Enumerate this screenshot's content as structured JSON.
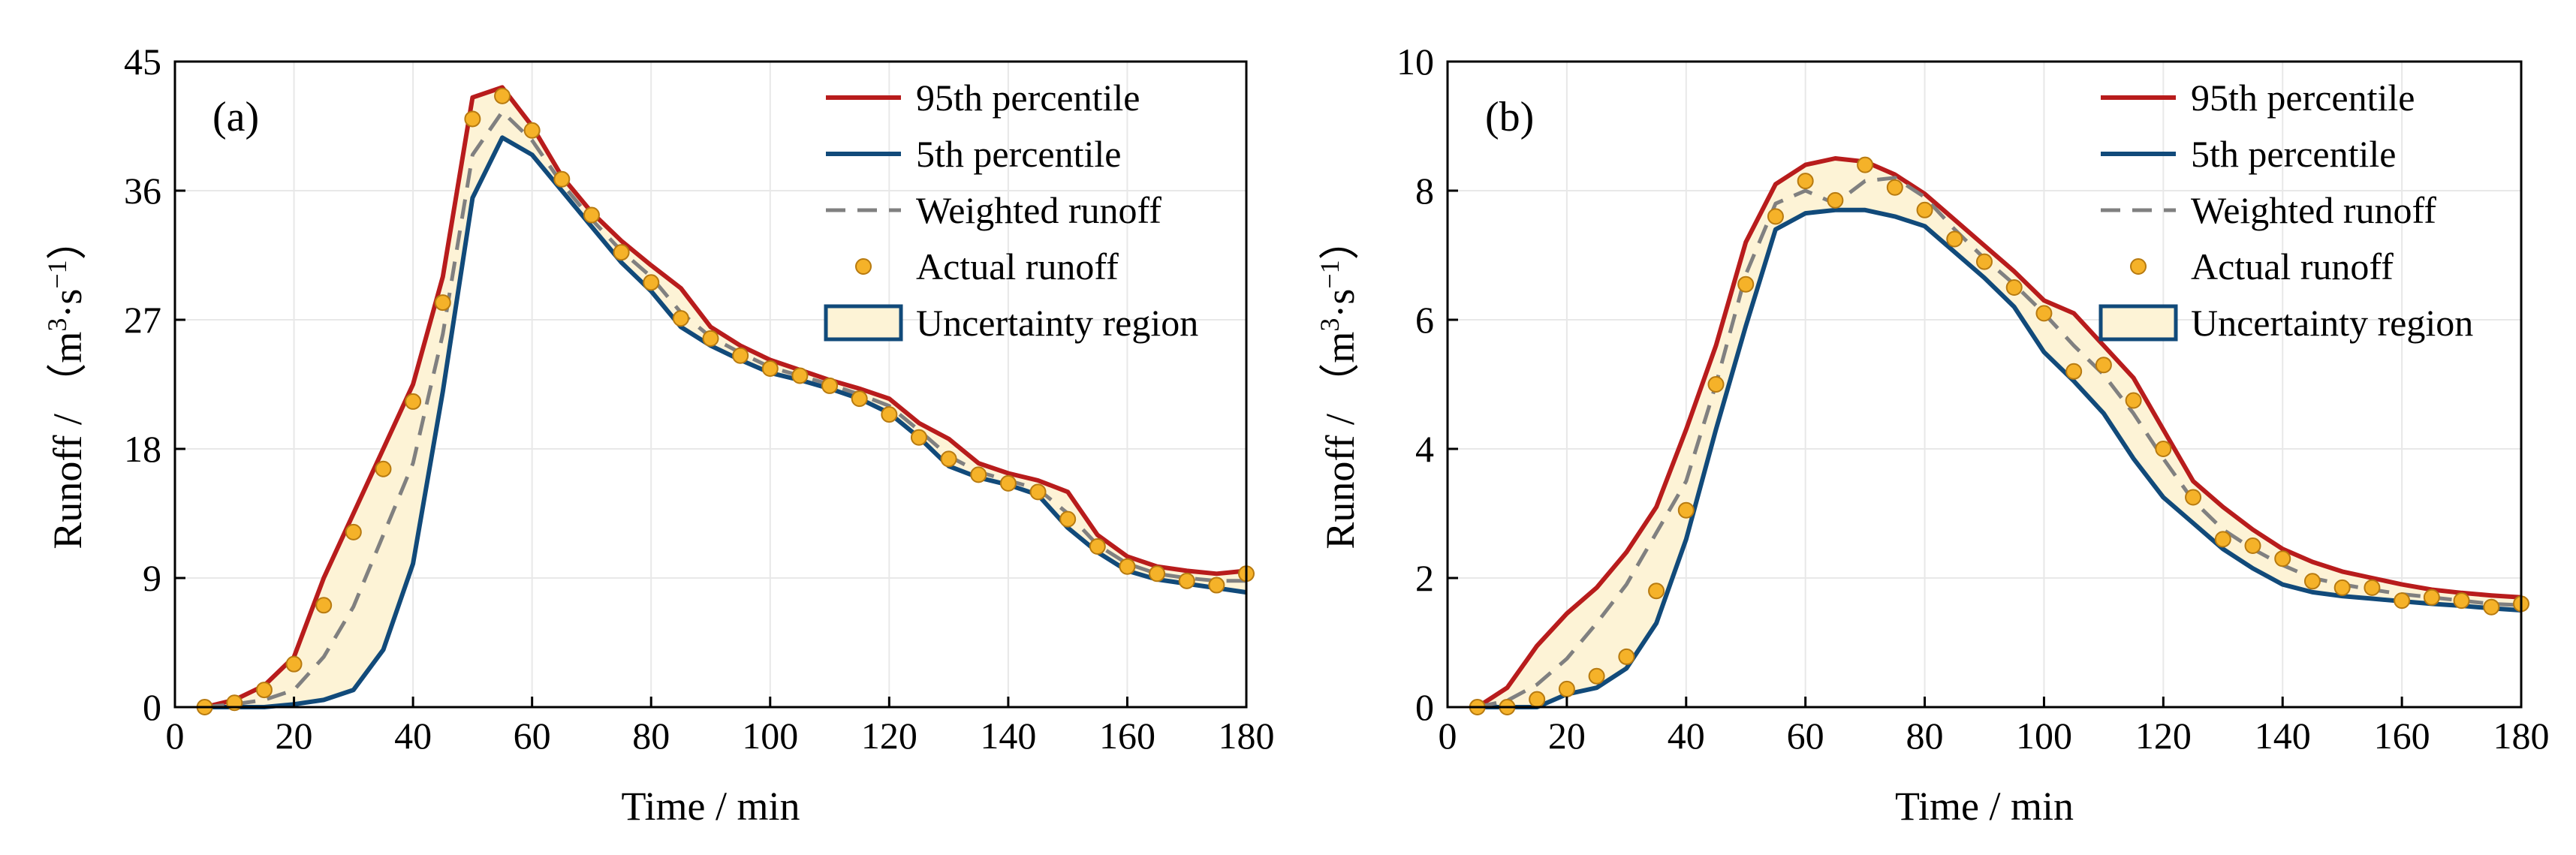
{
  "colors": {
    "p95": "#b81c1c",
    "p5": "#114a7a",
    "weighted": "#808080",
    "actual_fill": "#f5b229",
    "actual_edge": "#b77a10",
    "band_fill": "#fdf3d6",
    "grid": "#e8e8e8"
  },
  "chart_data": [
    {
      "type": "line",
      "panel_label": "(a)",
      "xlabel": "Time / min",
      "ylabel": "Runoff / （m³·s⁻¹）",
      "ylabel_main": "Runoff / （m",
      "ylabel_sup1": "3",
      "ylabel_mid": "·s",
      "ylabel_sup2": "−1",
      "ylabel_end": "）",
      "xlim": [
        0,
        180
      ],
      "ylim": [
        0,
        45
      ],
      "xticks": [
        0,
        20,
        40,
        60,
        80,
        100,
        120,
        140,
        160,
        180
      ],
      "yticks": [
        0,
        9,
        18,
        27,
        36,
        45
      ],
      "xtick_labels": [
        "0",
        "20",
        "40",
        "60",
        "80",
        "100",
        "120",
        "140",
        "160",
        "180"
      ],
      "ytick_labels": [
        "0",
        "9",
        "18",
        "27",
        "36",
        "45"
      ],
      "grid": true,
      "legend": {
        "position": "top-right",
        "labels": [
          "95th percentile",
          "5th percentile",
          "Weighted runoff",
          "Actual runoff",
          "Uncertainty region"
        ]
      },
      "x": [
        5,
        10,
        15,
        20,
        25,
        30,
        35,
        40,
        45,
        50,
        55,
        60,
        65,
        70,
        75,
        80,
        85,
        90,
        95,
        100,
        105,
        110,
        115,
        120,
        125,
        130,
        135,
        140,
        145,
        150,
        155,
        160,
        165,
        170,
        175,
        180
      ],
      "series": [
        {
          "name": "95th percentile",
          "values": [
            0,
            0.5,
            1.5,
            3.5,
            9,
            13.5,
            18,
            22.5,
            30,
            42.5,
            43.2,
            40.5,
            37,
            34.5,
            32.5,
            30.8,
            29.2,
            26.5,
            25.2,
            24.2,
            23.5,
            22.8,
            22.2,
            21.5,
            19.8,
            18.7,
            17,
            16.3,
            15.8,
            15,
            12,
            10.5,
            9.8,
            9.5,
            9.3,
            9.5
          ]
        },
        {
          "name": "5th percentile",
          "values": [
            0,
            0,
            0,
            0.2,
            0.5,
            1.2,
            4,
            10,
            22,
            35.5,
            39.7,
            38.5,
            36,
            33.5,
            31,
            29,
            26.5,
            25.2,
            24.2,
            23.3,
            22.8,
            22.2,
            21.5,
            20.5,
            18.8,
            16.8,
            16,
            15.5,
            14.8,
            12.5,
            10.8,
            9.5,
            8.9,
            8.6,
            8.3,
            8
          ]
        },
        {
          "name": "Weighted runoff",
          "values": [
            0,
            0.2,
            0.5,
            1.2,
            3.5,
            7,
            12,
            17,
            26,
            38.5,
            41.5,
            39.5,
            36.5,
            34,
            31.8,
            30,
            27.5,
            25.8,
            24.7,
            23.7,
            23.1,
            22.5,
            21.8,
            21,
            19.3,
            17.5,
            16.4,
            15.8,
            15.2,
            13.5,
            11.3,
            10,
            9.3,
            9,
            8.8,
            8.8
          ]
        },
        {
          "name": "Actual runoff",
          "values": [
            0,
            0.3,
            1.2,
            3,
            7.1,
            12.2,
            16.6,
            21.3,
            28.2,
            41,
            42.6,
            40.2,
            36.8,
            34.3,
            31.7,
            29.6,
            27.1,
            25.7,
            24.5,
            23.6,
            23.1,
            22.4,
            21.5,
            20.4,
            18.8,
            17.3,
            16.2,
            15.6,
            15,
            13.1,
            11.2,
            9.8,
            9.3,
            8.8,
            8.5,
            9.3
          ]
        }
      ]
    },
    {
      "type": "line",
      "panel_label": "(b)",
      "xlabel": "Time / min",
      "ylabel": "Runoff / （m³·s⁻¹）",
      "ylabel_main": "Runoff / （m",
      "ylabel_sup1": "3",
      "ylabel_mid": "·s",
      "ylabel_sup2": "−1",
      "ylabel_end": "）",
      "xlim": [
        0,
        180
      ],
      "ylim": [
        0,
        10
      ],
      "xticks": [
        0,
        20,
        40,
        60,
        80,
        100,
        120,
        140,
        160,
        180
      ],
      "yticks": [
        0,
        2,
        4,
        6,
        8,
        10
      ],
      "xtick_labels": [
        "0",
        "20",
        "40",
        "60",
        "80",
        "100",
        "120",
        "140",
        "160",
        "180"
      ],
      "ytick_labels": [
        "0",
        "2",
        "4",
        "6",
        "8",
        "10"
      ],
      "grid": true,
      "legend": {
        "position": "top-right",
        "labels": [
          "95th percentile",
          "5th percentile",
          "Weighted runoff",
          "Actual runoff",
          "Uncertainty region"
        ]
      },
      "x": [
        5,
        10,
        15,
        20,
        25,
        30,
        35,
        40,
        45,
        50,
        55,
        60,
        65,
        70,
        75,
        80,
        85,
        90,
        95,
        100,
        105,
        110,
        115,
        120,
        125,
        130,
        135,
        140,
        145,
        150,
        155,
        160,
        165,
        170,
        175,
        180
      ],
      "series": [
        {
          "name": "95th percentile",
          "values": [
            0,
            0.3,
            0.95,
            1.45,
            1.85,
            2.4,
            3.1,
            4.3,
            5.6,
            7.2,
            8.1,
            8.4,
            8.5,
            8.45,
            8.25,
            7.95,
            7.55,
            7.15,
            6.75,
            6.3,
            6.1,
            5.6,
            5.1,
            4.3,
            3.5,
            3.1,
            2.75,
            2.45,
            2.25,
            2.1,
            2.0,
            1.9,
            1.82,
            1.77,
            1.73,
            1.7
          ]
        },
        {
          "name": "5th percentile",
          "values": [
            0,
            0,
            0,
            0.2,
            0.3,
            0.6,
            1.3,
            2.6,
            4.3,
            5.9,
            7.4,
            7.65,
            7.7,
            7.7,
            7.6,
            7.45,
            7.05,
            6.65,
            6.2,
            5.5,
            5.05,
            4.55,
            3.85,
            3.25,
            2.85,
            2.45,
            2.15,
            1.9,
            1.78,
            1.72,
            1.68,
            1.64,
            1.6,
            1.57,
            1.53,
            1.5
          ]
        },
        {
          "name": "Weighted runoff",
          "values": [
            0,
            0.1,
            0.35,
            0.75,
            1.3,
            1.9,
            2.7,
            3.5,
            5.0,
            6.7,
            7.8,
            8.0,
            7.8,
            8.15,
            8.2,
            7.9,
            7.4,
            6.95,
            6.55,
            6.1,
            5.6,
            5.15,
            4.55,
            3.85,
            3.2,
            2.75,
            2.45,
            2.2,
            2.0,
            1.9,
            1.82,
            1.75,
            1.7,
            1.65,
            1.6,
            1.58
          ]
        },
        {
          "name": "Actual runoff",
          "values": [
            0,
            0,
            0.12,
            0.28,
            0.48,
            0.78,
            1.8,
            3.05,
            5.0,
            6.55,
            7.6,
            8.15,
            7.85,
            8.4,
            8.05,
            7.7,
            7.25,
            6.9,
            6.5,
            6.1,
            5.2,
            5.3,
            4.75,
            4.0,
            3.25,
            2.6,
            2.5,
            2.3,
            1.95,
            1.85,
            1.85,
            1.65,
            1.7,
            1.65,
            1.55,
            1.6
          ]
        }
      ]
    }
  ]
}
